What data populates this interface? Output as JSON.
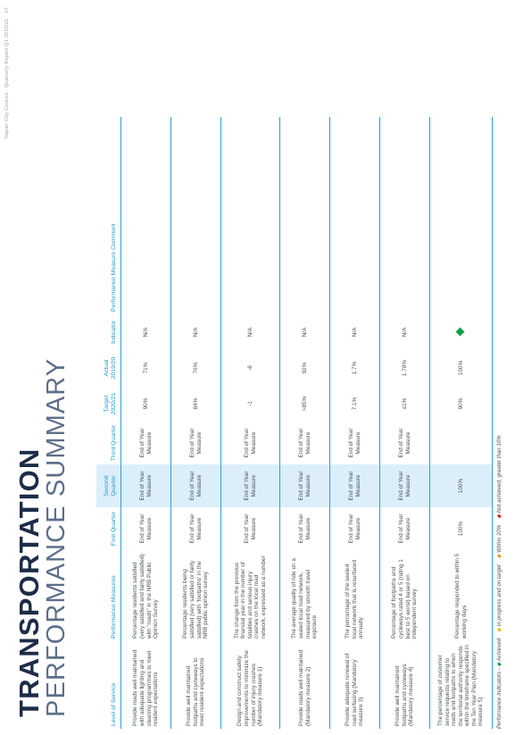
{
  "running_header": {
    "text": "Napier City Council - Quarterly Report Q1 2020/21",
    "page": "17"
  },
  "colors": {
    "accent": "#2a9fd6",
    "header_text": "#1e9bd0",
    "title": "#1d2c47",
    "subtitle": "#5e6f8a",
    "shade": "#dbeef9",
    "achieved": "#13a14a"
  },
  "title": "TRANSPORTATION",
  "subtitle": "PERFORMANCE SUMMARY",
  "columns": {
    "level": "Level of Service",
    "measures": "Performance Measures",
    "q1": "First Quarter",
    "q2": "Second Quarter",
    "q3": "Third Quarter",
    "target": "Target 2020/21",
    "actual": "Actual 2019/20",
    "indicator": "Indicator",
    "comment": "Performance Measure Comment"
  },
  "rows": [
    {
      "level": "Provide roads well maintained with adequate lighting and cleaning programmes to meet resident expectations",
      "measure": "Percentage residents satisfied (very satisfied and fairly satisfied) with \"roads\" in the NRB Public Opinion Survey",
      "q1": "End of Year Measure",
      "q2": "End of Year Measure",
      "q3": "End of Year Measure",
      "target": "90%",
      "actual": "71%",
      "indicator": "N/A",
      "indicator_icon": "",
      "comment": ""
    },
    {
      "level": "Provide well maintained footpaths and cycleways to meet resident expectations",
      "measure": "Percentage residents being satisfied (very satisfied or fairly satisfied) with 'footpaths' in the NRB public opinion survey",
      "q1": "End of Year Measure",
      "q2": "End of Year Measure",
      "q3": "End of Year Measure",
      "target": "84%",
      "actual": "76%",
      "indicator": "N/A",
      "indicator_icon": "",
      "comment": ""
    },
    {
      "level": "Design and construct safety improvements to minimize the number of injury crashes (Mandatory measure 1)",
      "measure": "The change from the previous financial year in the number of fatalities and serious injury crashes on the local road network, expressed as a number",
      "q1": "End of Year Measure",
      "q2": "End of Year Measure",
      "q3": "End of Year Measure",
      "target": "-1",
      "actual": "-8",
      "indicator": "N/A",
      "indicator_icon": "",
      "comment": ""
    },
    {
      "level": "Provide roads well maintained (Mandatory measure 2)",
      "measure": "The average quality of ride on a sealed local road network, measured by smooth travel exposure",
      "q1": "End of Year Measure",
      "q2": "End of Year Measure",
      "q3": "End of Year Measure",
      "target": ">85%",
      "actual": "92%",
      "indicator": "N/A",
      "indicator_icon": "",
      "comment": ""
    },
    {
      "level": "Provide adequate renewal of road surfacing (Mandatory measure 3)",
      "measure": "The percentage of the sealed local network that is resurfaced annually",
      "q1": "End of Year Measure",
      "q2": "End of Year Measure",
      "q3": "End of Year Measure",
      "target": "7.1%",
      "actual": "1.7%",
      "indicator": "N/A",
      "indicator_icon": "",
      "comment": ""
    },
    {
      "level": "Provide well maintained footpaths and cycleways (Mandatory measure 4)",
      "measure": "Percentage of footpaths and cycleways rated 4 or 5 (rating 1 best to 5 worst) based on independent survey",
      "q1": "End of Year Measure",
      "q2": "End of Year Measure",
      "q3": "End of Year Measure",
      "target": "≤1%",
      "actual": "1.78%",
      "indicator": "N/A",
      "indicator_icon": "",
      "comment": ""
    },
    {
      "level": "The percentage of customer service requests relating to roads and footpaths to which the territorial authority responds within the timeframe specified in the Ten Year Plan (Mandatory measure 5)",
      "measure": "Percentage responded to within 5 working days",
      "q1": "100%",
      "q2": "100%",
      "q3": "",
      "target": "90%",
      "actual": "100%",
      "indicator": "",
      "indicator_icon": "achieved-diamond",
      "comment": ""
    }
  ],
  "legend": {
    "prefix": "Performance Indicators -",
    "achieved": "Achieved",
    "in_progress": "In progress and on target",
    "within": "Within 10%",
    "not_achieved": "Not achieved, greater than 10%"
  }
}
